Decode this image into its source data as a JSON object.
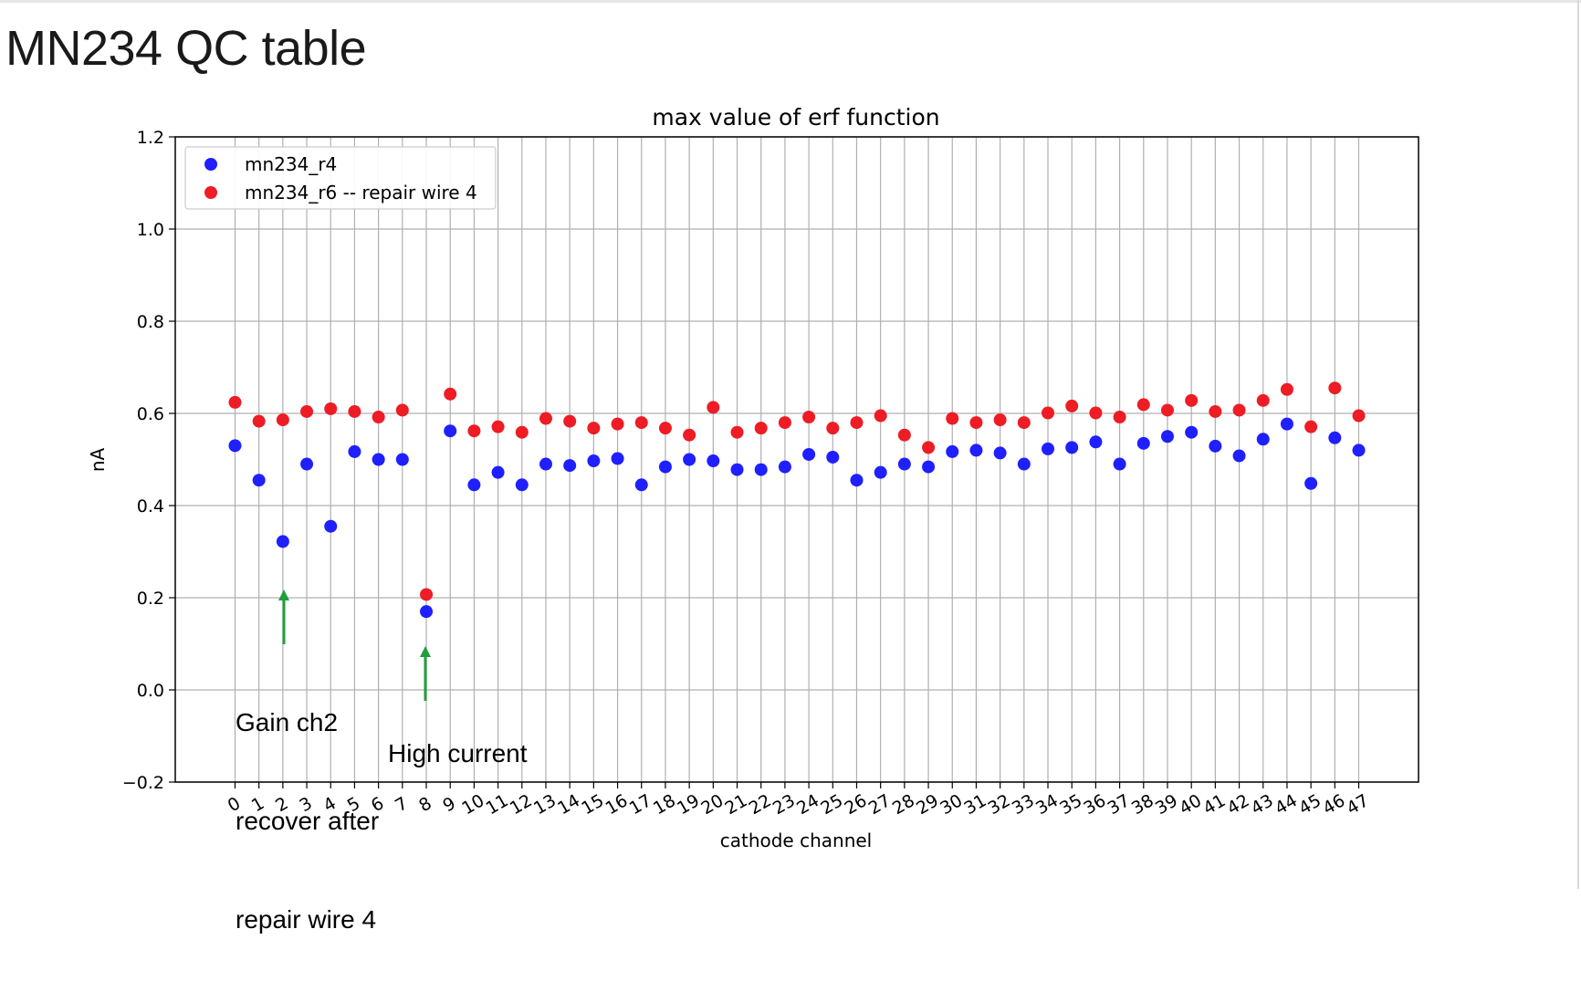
{
  "slide": {
    "title": "MN234 QC table"
  },
  "annotations": {
    "gain_note": [
      "Gain ch2",
      "recover after",
      "repair wire 4"
    ],
    "high_current": "High current"
  },
  "chart_data": {
    "type": "scatter",
    "title": "max value of erf function",
    "xlabel": "cathode channel",
    "ylabel": "nA",
    "ylim": [
      -0.2,
      1.2
    ],
    "xlim": [
      -2.5,
      49.5
    ],
    "yticks": [
      -0.2,
      0.0,
      0.2,
      0.4,
      0.6,
      0.8,
      1.0,
      1.2
    ],
    "ytick_labels": [
      "−0.2",
      "0.0",
      "0.2",
      "0.4",
      "0.6",
      "0.8",
      "1.0",
      "1.2"
    ],
    "grid": true,
    "legend": "top-left",
    "x": [
      0,
      1,
      2,
      3,
      4,
      5,
      6,
      7,
      8,
      9,
      10,
      11,
      12,
      13,
      14,
      15,
      16,
      17,
      18,
      19,
      20,
      21,
      22,
      23,
      24,
      25,
      26,
      27,
      28,
      29,
      30,
      31,
      32,
      33,
      34,
      35,
      36,
      37,
      38,
      39,
      40,
      41,
      42,
      43,
      44,
      45,
      46,
      47
    ],
    "series": [
      {
        "name": "mn234_r4",
        "color": "#1f1fff",
        "values": [
          0.53,
          0.455,
          0.322,
          0.49,
          0.355,
          0.517,
          0.5,
          0.5,
          0.17,
          0.562,
          0.445,
          0.472,
          0.445,
          0.49,
          0.487,
          0.497,
          0.502,
          0.445,
          0.484,
          0.5,
          0.497,
          0.478,
          0.478,
          0.484,
          0.511,
          0.505,
          0.455,
          0.472,
          0.49,
          0.484,
          0.517,
          0.52,
          0.514,
          0.49,
          0.523,
          0.526,
          0.538,
          0.49,
          0.535,
          0.55,
          0.559,
          0.529,
          0.508,
          0.544,
          0.577,
          0.448,
          0.547,
          0.52
        ]
      },
      {
        "name": "mn234_r6 -- repair wire 4",
        "color": "#ee1c24",
        "values": [
          0.624,
          0.583,
          0.586,
          0.604,
          0.61,
          0.604,
          0.592,
          0.607,
          0.207,
          0.642,
          0.562,
          0.571,
          0.559,
          0.589,
          0.583,
          0.568,
          0.577,
          0.58,
          0.568,
          0.553,
          0.613,
          0.559,
          0.568,
          0.58,
          0.592,
          0.568,
          0.58,
          0.595,
          0.553,
          0.526,
          0.589,
          0.58,
          0.586,
          0.58,
          0.601,
          0.616,
          0.601,
          0.592,
          0.619,
          0.607,
          0.628,
          0.604,
          0.607,
          0.628,
          0.652,
          0.571,
          0.655,
          0.595
        ]
      }
    ]
  }
}
